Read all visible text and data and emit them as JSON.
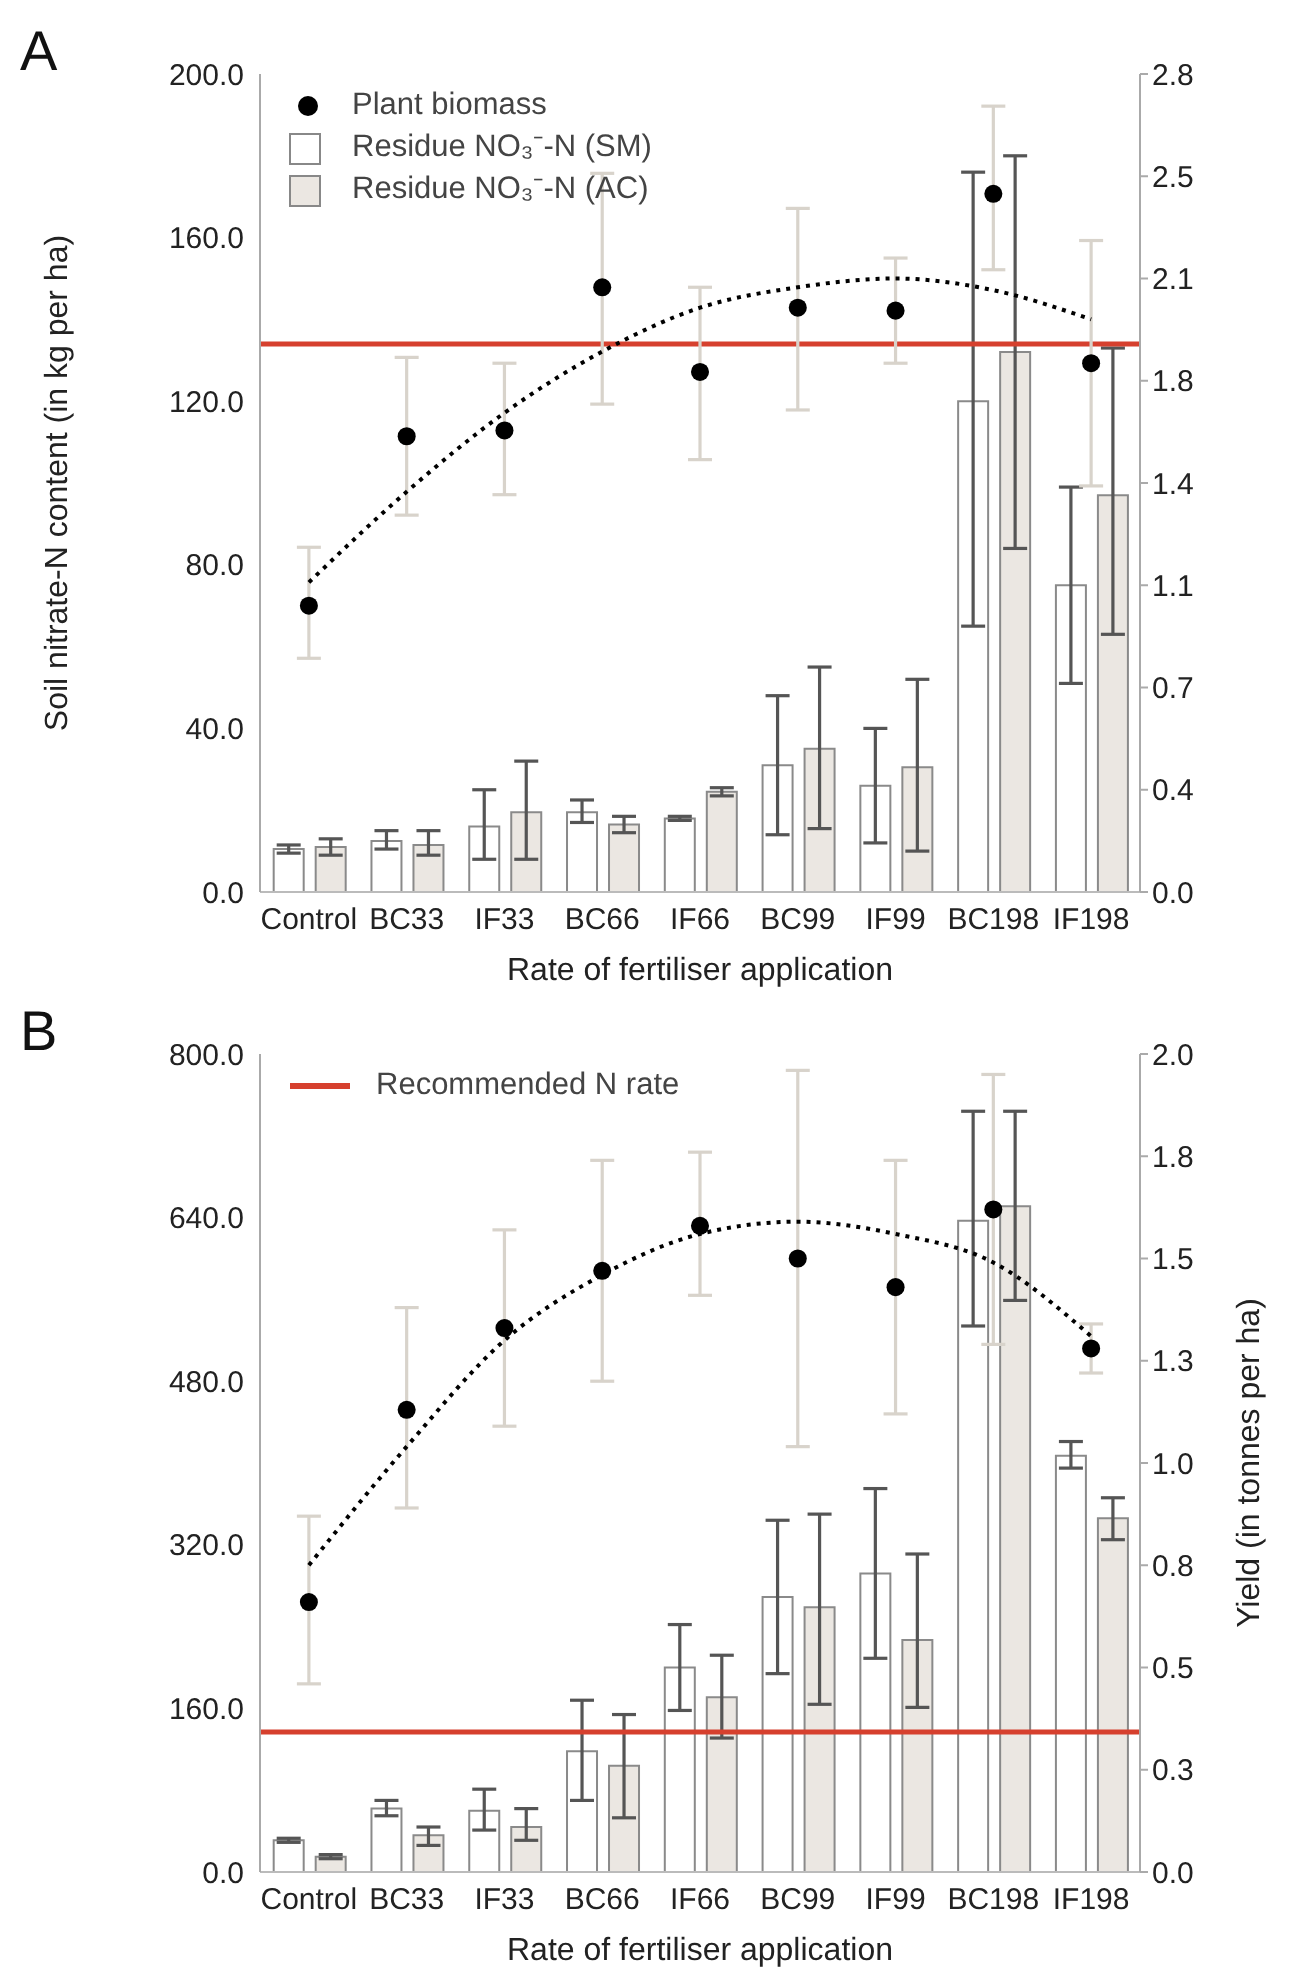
{
  "chart_data": [
    {
      "type": "bar",
      "title": "A",
      "xlabel": "Rate of fertiliser application",
      "ylabel": "Soil nitrate-N content (in kg per ha)",
      "categories": [
        "Control",
        "BC33",
        "IF33",
        "BC66",
        "IF66",
        "BC99",
        "IF99",
        "BC198",
        "IF198"
      ],
      "legend": "top left",
      "grid": false,
      "series": [
        {
          "name": "Plant biomass",
          "type": "scatter",
          "axis": "y2",
          "marker": "circle",
          "color": "#000000",
          "values": [
            0.98,
            1.56,
            1.58,
            2.07,
            1.78,
            2.0,
            1.99,
            2.39,
            1.81
          ],
          "errors": [
            [
              0.8,
              1.18
            ],
            [
              1.29,
              1.83
            ],
            [
              1.36,
              1.81
            ],
            [
              1.67,
              2.46
            ],
            [
              1.48,
              2.07
            ],
            [
              1.65,
              2.34
            ],
            [
              1.81,
              2.17
            ],
            [
              2.13,
              2.69
            ],
            [
              1.39,
              2.23
            ]
          ]
        },
        {
          "name": "Residue NO₃⁻-N (SM)",
          "color": "#ffffff",
          "values": [
            10.5,
            12.5,
            16,
            19.5,
            18,
            31,
            26,
            120,
            75
          ],
          "errors": [
            [
              9.5,
              11.5
            ],
            [
              10.5,
              15
            ],
            [
              8,
              25
            ],
            [
              17,
              22.5
            ],
            [
              17.5,
              18.5
            ],
            [
              14,
              48
            ],
            [
              12,
              40
            ],
            [
              65,
              176
            ],
            [
              51,
              99
            ]
          ]
        },
        {
          "name": "Residue NO₃⁻-N (AC)",
          "color": "#ebe7e2",
          "values": [
            11,
            11.5,
            19.5,
            16.5,
            24.5,
            35,
            30.5,
            132,
            97
          ],
          "errors": [
            [
              9,
              13
            ],
            [
              9,
              15
            ],
            [
              8,
              32
            ],
            [
              14.5,
              18.5
            ],
            [
              23.5,
              25.5
            ],
            [
              15.5,
              55
            ],
            [
              10,
              52
            ],
            [
              84,
              180
            ],
            [
              63,
              133
            ]
          ]
        },
        {
          "type": "line",
          "axis": "y2",
          "marker": "none",
          "line_style": "dotted",
          "color": "#000000",
          "values": [
            1.06,
            1.37,
            1.64,
            1.85,
            2.0,
            2.07,
            2.1,
            2.06,
            1.96
          ]
        }
      ],
      "ylim": [
        0,
        200
      ],
      "yticks": [
        {
          "value": 0,
          "label": "0.0"
        },
        {
          "value": 40,
          "label": "40.0"
        },
        {
          "value": 80,
          "label": "80.0"
        },
        {
          "value": 120,
          "label": "120.0"
        },
        {
          "value": 160,
          "label": "160.0"
        },
        {
          "value": 200,
          "label": "200.0"
        }
      ],
      "y2lim": [
        0,
        2.8
      ],
      "y2ticks": [
        {
          "value": 0,
          "label": "0.0"
        },
        {
          "value": 0.35,
          "label": "0.4"
        },
        0.7,
        {
          "value": 1.05,
          "label": "1.1"
        },
        1.4,
        {
          "value": 1.75,
          "label": "1.8"
        },
        2.1,
        {
          "value": 2.45,
          "label": "2.5"
        },
        2.8
      ],
      "ref_lines": [
        {
          "axis": "y",
          "value": 134,
          "color": "#d6402e"
        }
      ]
    },
    {
      "type": "bar",
      "title": "B",
      "xlabel": "Rate of fertiliser application",
      "y2label": "Yield (in tonnes per ha)",
      "categories": [
        "Control",
        "BC33",
        "IF33",
        "BC66",
        "IF66",
        "BC99",
        "IF99",
        "BC198",
        "IF198"
      ],
      "legend": "top left",
      "grid": false,
      "series": [
        {
          "color": "#ffffff",
          "values": [
            31,
            62,
            60,
            118,
            200,
            269,
            292,
            637,
            407
          ],
          "errors": [
            [
              29,
              33
            ],
            [
              55,
              70
            ],
            [
              41,
              81
            ],
            [
              70,
              168
            ],
            [
              158,
              242
            ],
            [
              194,
              344
            ],
            [
              209,
              375
            ],
            [
              534,
              744
            ],
            [
              395,
              421
            ]
          ]
        },
        {
          "color": "#ebe7e2",
          "values": [
            15,
            36,
            44,
            104,
            171,
            259,
            227,
            651,
            346
          ],
          "errors": [
            [
              13,
              17
            ],
            [
              26,
              44
            ],
            [
              31,
              62
            ],
            [
              53,
              154
            ],
            [
              131,
              212
            ],
            [
              164,
              350
            ],
            [
              161,
              311
            ],
            [
              559,
              744
            ],
            [
              325,
              366
            ]
          ]
        },
        {
          "type": "scatter",
          "axis": "y2",
          "marker": "circle",
          "color": "#000000",
          "values": [
            0.66,
            1.13,
            1.33,
            1.47,
            1.58,
            1.5,
            1.43,
            1.62,
            1.28
          ],
          "errors": [
            [
              0.46,
              0.87
            ],
            [
              0.89,
              1.38
            ],
            [
              1.09,
              1.57
            ],
            [
              1.2,
              1.74
            ],
            [
              1.41,
              1.76
            ],
            [
              1.04,
              1.96
            ],
            [
              1.12,
              1.74
            ],
            [
              1.29,
              1.95
            ],
            [
              1.22,
              1.34
            ]
          ]
        },
        {
          "type": "line",
          "axis": "y2",
          "marker": "none",
          "line_style": "dotted",
          "color": "#000000",
          "values": [
            0.75,
            1.04,
            1.3,
            1.46,
            1.56,
            1.59,
            1.56,
            1.49,
            1.31
          ]
        }
      ],
      "ylim": [
        0,
        800
      ],
      "yticks": [
        {
          "value": 0,
          "label": "0.0"
        },
        {
          "value": 160,
          "label": "160.0"
        },
        {
          "value": 320,
          "label": "320.0"
        },
        {
          "value": 480,
          "label": "480.0"
        },
        {
          "value": 640,
          "label": "640.0"
        },
        {
          "value": 800,
          "label": "800.0"
        }
      ],
      "y2lim": [
        0,
        2.0
      ],
      "y2ticks": [
        {
          "value": 0,
          "label": "0.0"
        },
        {
          "value": 0.25,
          "label": "0.3"
        },
        0.5,
        {
          "value": 0.75,
          "label": "0.8"
        },
        {
          "value": 1.0,
          "label": "1.0"
        },
        {
          "value": 1.25,
          "label": "1.3"
        },
        1.5,
        {
          "value": 1.75,
          "label": "1.8"
        },
        {
          "value": 2.0,
          "label": "2.0"
        }
      ],
      "ref_lines": [
        {
          "axis": "y",
          "value": 137,
          "color": "#d6402e",
          "label": "Recommended N rate"
        }
      ]
    }
  ]
}
